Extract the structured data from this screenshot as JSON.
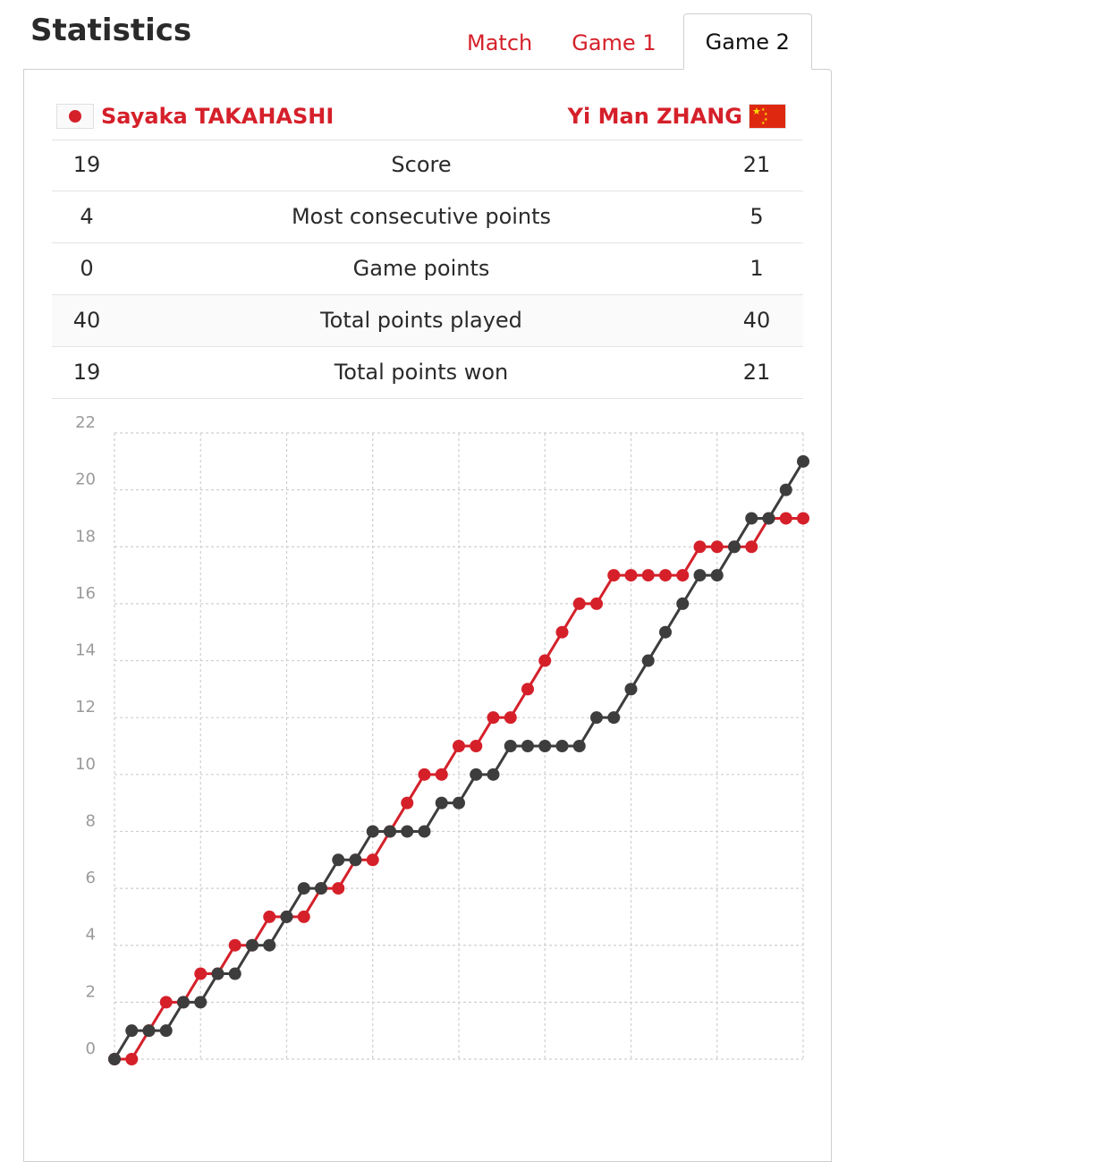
{
  "header": {
    "title": "Statistics"
  },
  "tabs": [
    {
      "label": "Match",
      "active": false
    },
    {
      "label": "Game 1",
      "active": false
    },
    {
      "label": "Game 2",
      "active": true
    }
  ],
  "players": {
    "left": {
      "name": "Sayaka TAKAHASHI",
      "flag": "japan-flag-icon"
    },
    "right": {
      "name": "Yi Man ZHANG",
      "flag": "china-flag-icon"
    }
  },
  "stats": [
    {
      "left": "19",
      "label": "Score",
      "right": "21"
    },
    {
      "left": "4",
      "label": "Most consecutive points",
      "right": "5"
    },
    {
      "left": "0",
      "label": "Game points",
      "right": "1"
    },
    {
      "left": "40",
      "label": "Total points played",
      "right": "40"
    },
    {
      "left": "19",
      "label": "Total points won",
      "right": "21"
    }
  ],
  "colors": {
    "accent": "#d5202a",
    "series_left": "#d5202a",
    "series_right": "#3d3d3d",
    "grid": "#cfcfcf"
  },
  "chart_data": {
    "type": "line",
    "title": "",
    "xlabel": "",
    "ylabel": "",
    "ylim": [
      0,
      22
    ],
    "yticks": [
      0,
      2,
      4,
      6,
      8,
      10,
      12,
      14,
      16,
      18,
      20,
      22
    ],
    "x": [
      0,
      1,
      2,
      3,
      4,
      5,
      6,
      7,
      8,
      9,
      10,
      11,
      12,
      13,
      14,
      15,
      16,
      17,
      18,
      19,
      20,
      21,
      22,
      23,
      24,
      25,
      26,
      27,
      28,
      29,
      30,
      31,
      32,
      33,
      34,
      35,
      36,
      37,
      38,
      39,
      40
    ],
    "grid": true,
    "series": [
      {
        "name": "Sayaka TAKAHASHI",
        "color": "#d5202a",
        "values": [
          0,
          0,
          1,
          2,
          2,
          3,
          3,
          4,
          4,
          5,
          5,
          5,
          6,
          6,
          7,
          7,
          8,
          9,
          10,
          10,
          11,
          11,
          12,
          12,
          13,
          14,
          15,
          16,
          16,
          17,
          17,
          17,
          17,
          17,
          18,
          18,
          18,
          18,
          19,
          19,
          19
        ]
      },
      {
        "name": "Yi Man ZHANG",
        "color": "#3d3d3d",
        "values": [
          0,
          1,
          1,
          1,
          2,
          2,
          3,
          3,
          4,
          4,
          5,
          6,
          6,
          7,
          7,
          8,
          8,
          8,
          8,
          9,
          9,
          10,
          10,
          11,
          11,
          11,
          11,
          11,
          12,
          12,
          13,
          14,
          15,
          16,
          17,
          17,
          18,
          19,
          19,
          20,
          21
        ]
      }
    ]
  }
}
